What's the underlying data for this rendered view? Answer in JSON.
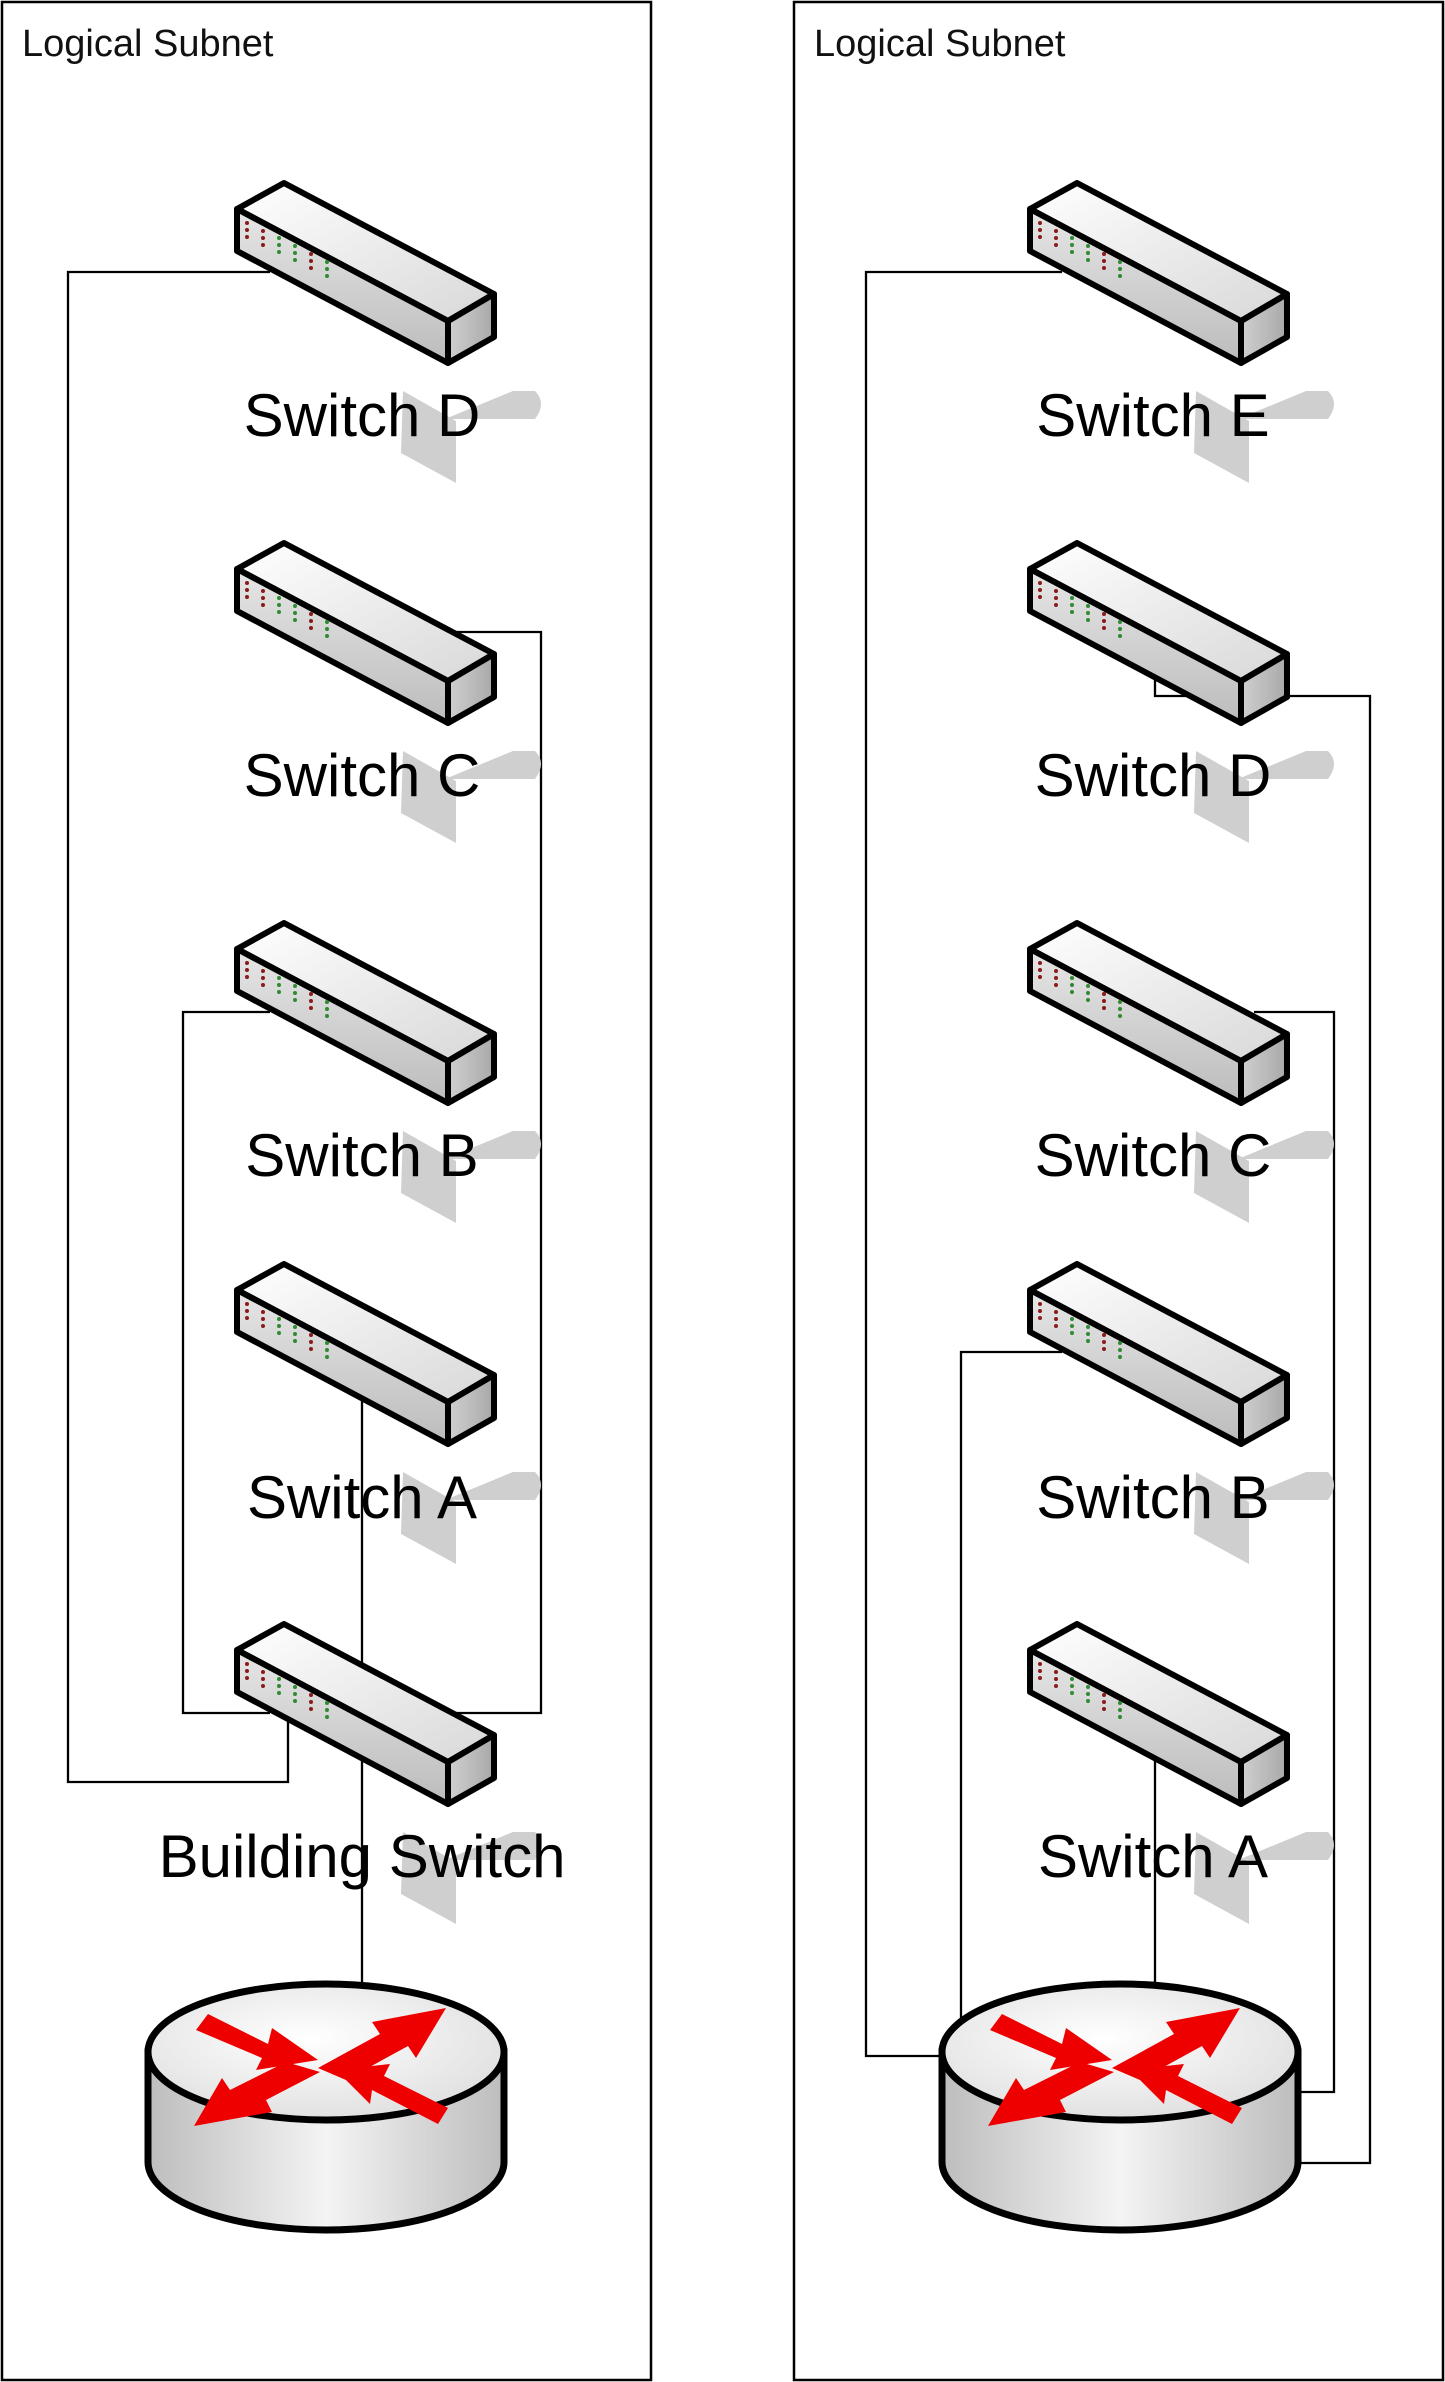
{
  "colors": {
    "frame": "#000000",
    "wire": "#000000",
    "switch_top": "#f6f6f6",
    "switch_side": "#d4d4d4",
    "switch_front": "#bdbdbd",
    "shadow": "#c8c8c8",
    "led_red": "#8b1a1a",
    "led_green": "#2e8b2e",
    "router_body": "#d9d9d9",
    "router_arrow": "#ee0000"
  },
  "icons": {
    "switch": "network-switch-icon",
    "router": "router-icon"
  },
  "left_panel": {
    "title": "Logical Subnet",
    "devices": [
      {
        "id": "L-D",
        "icon": "network-switch-icon",
        "label": "Switch D"
      },
      {
        "id": "L-C",
        "icon": "network-switch-icon",
        "label": "Switch C"
      },
      {
        "id": "L-B",
        "icon": "network-switch-icon",
        "label": "Switch B"
      },
      {
        "id": "L-A",
        "icon": "network-switch-icon",
        "label": "Switch A"
      },
      {
        "id": "L-BS",
        "icon": "network-switch-icon",
        "label": "Building Switch"
      },
      {
        "id": "L-R",
        "icon": "router-icon",
        "label": ""
      }
    ],
    "links": [
      {
        "from": "Switch D",
        "to": "Building Switch"
      },
      {
        "from": "Switch C",
        "to": "Building Switch"
      },
      {
        "from": "Switch B",
        "to": "Building Switch"
      },
      {
        "from": "Switch A",
        "to": "Building Switch"
      },
      {
        "from": "Building Switch",
        "to": "Router"
      }
    ]
  },
  "right_panel": {
    "title": "Logical Subnet",
    "devices": [
      {
        "id": "R-E",
        "icon": "network-switch-icon",
        "label": "Switch E"
      },
      {
        "id": "R-D",
        "icon": "network-switch-icon",
        "label": "Switch D"
      },
      {
        "id": "R-C",
        "icon": "network-switch-icon",
        "label": "Switch C"
      },
      {
        "id": "R-B",
        "icon": "network-switch-icon",
        "label": "Switch B"
      },
      {
        "id": "R-A",
        "icon": "network-switch-icon",
        "label": "Switch A"
      },
      {
        "id": "R-R",
        "icon": "router-icon",
        "label": ""
      }
    ],
    "links": [
      {
        "from": "Switch E",
        "to": "Router"
      },
      {
        "from": "Switch D",
        "to": "Router"
      },
      {
        "from": "Switch C",
        "to": "Router"
      },
      {
        "from": "Switch B",
        "to": "Router"
      },
      {
        "from": "Switch A",
        "to": "Router"
      }
    ]
  }
}
